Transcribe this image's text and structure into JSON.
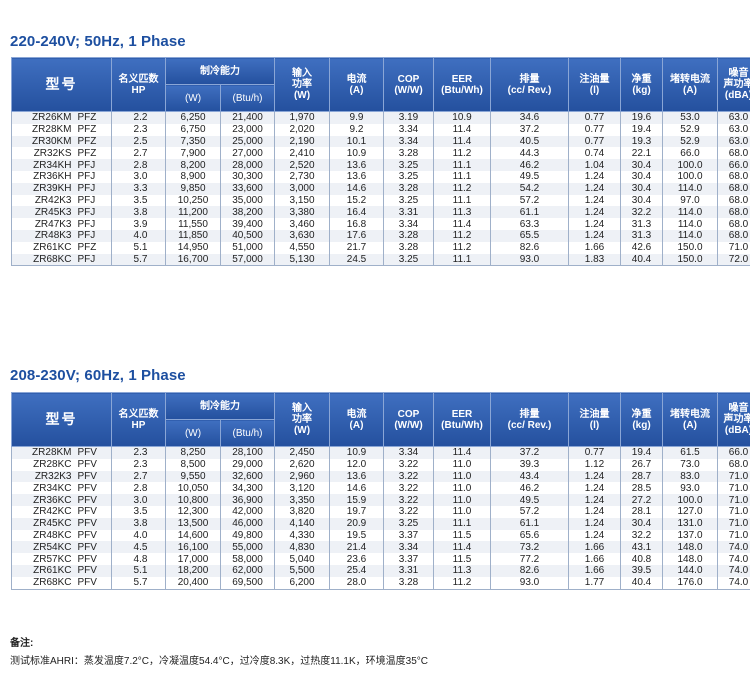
{
  "tables": [
    {
      "title": "220-240V; 50Hz, 1 Phase",
      "rows": [
        [
          "ZR26KM",
          "PFZ",
          "2.2",
          "6,250",
          "21,400",
          "1,970",
          "9.9",
          "3.19",
          "10.9",
          "34.6",
          "0.77",
          "19.6",
          "53.0",
          "63.0"
        ],
        [
          "ZR28KM",
          "PFZ",
          "2.3",
          "6,750",
          "23,000",
          "2,020",
          "9.2",
          "3.34",
          "11.4",
          "37.2",
          "0.77",
          "19.4",
          "52.9",
          "63.0"
        ],
        [
          "ZR30KM",
          "PFZ",
          "2.5",
          "7,350",
          "25,000",
          "2,190",
          "10.1",
          "3.34",
          "11.4",
          "40.5",
          "0.77",
          "19.3",
          "52.9",
          "63.0"
        ],
        [
          "ZR32KS",
          "PFZ",
          "2.7",
          "7,900",
          "27,000",
          "2,410",
          "10.9",
          "3.28",
          "11.2",
          "44.3",
          "0.74",
          "22.1",
          "66.0",
          "68.0"
        ],
        [
          "ZR34KH",
          "PFJ",
          "2.8",
          "8,200",
          "28,000",
          "2,520",
          "13.6",
          "3.25",
          "11.1",
          "46.2",
          "1.04",
          "30.4",
          "100.0",
          "66.0"
        ],
        [
          "ZR36KH",
          "PFJ",
          "3.0",
          "8,900",
          "30,300",
          "2,730",
          "13.6",
          "3.25",
          "11.1",
          "49.5",
          "1.24",
          "30.4",
          "100.0",
          "68.0"
        ],
        [
          "ZR39KH",
          "PFJ",
          "3.3",
          "9,850",
          "33,600",
          "3,000",
          "14.6",
          "3.28",
          "11.2",
          "54.2",
          "1.24",
          "30.4",
          "114.0",
          "68.0"
        ],
        [
          "ZR42K3",
          "PFJ",
          "3.5",
          "10,250",
          "35,000",
          "3,150",
          "15.2",
          "3.25",
          "11.1",
          "57.2",
          "1.24",
          "30.4",
          "97.0",
          "68.0"
        ],
        [
          "ZR45K3",
          "PFJ",
          "3.8",
          "11,200",
          "38,200",
          "3,380",
          "16.4",
          "3.31",
          "11.3",
          "61.1",
          "1.24",
          "32.2",
          "114.0",
          "68.0"
        ],
        [
          "ZR47K3",
          "PFJ",
          "3.9",
          "11,550",
          "39,400",
          "3,460",
          "16.8",
          "3.34",
          "11.4",
          "63.3",
          "1.24",
          "31.3",
          "114.0",
          "68.0"
        ],
        [
          "ZR48K3",
          "PFJ",
          "4.0",
          "11,850",
          "40,500",
          "3,630",
          "17.6",
          "3.28",
          "11.2",
          "65.5",
          "1.24",
          "31.3",
          "114.0",
          "68.0"
        ],
        [
          "ZR61KC",
          "PFZ",
          "5.1",
          "14,950",
          "51,000",
          "4,550",
          "21.7",
          "3.28",
          "11.2",
          "82.6",
          "1.66",
          "42.6",
          "150.0",
          "71.0"
        ],
        [
          "ZR68KC",
          "PFJ",
          "5.7",
          "16,700",
          "57,000",
          "5,130",
          "24.5",
          "3.25",
          "11.1",
          "93.0",
          "1.83",
          "40.4",
          "150.0",
          "72.0"
        ]
      ]
    },
    {
      "title": "208-230V; 60Hz, 1 Phase",
      "rows": [
        [
          "ZR28KM",
          "PFV",
          "2.3",
          "8,250",
          "28,100",
          "2,450",
          "10.9",
          "3.34",
          "11.4",
          "37.2",
          "0.77",
          "19.4",
          "61.5",
          "66.0"
        ],
        [
          "ZR28KC",
          "PFV",
          "2.3",
          "8,500",
          "29,000",
          "2,620",
          "12.0",
          "3.22",
          "11.0",
          "39.3",
          "1.12",
          "26.7",
          "73.0",
          "68.0"
        ],
        [
          "ZR32K3",
          "PFV",
          "2.7",
          "9,550",
          "32,600",
          "2,960",
          "13.6",
          "3.22",
          "11.0",
          "43.4",
          "1.24",
          "28.7",
          "83.0",
          "71.0"
        ],
        [
          "ZR34KC",
          "PFV",
          "2.8",
          "10,050",
          "34,300",
          "3,120",
          "14.6",
          "3.22",
          "11.0",
          "46.2",
          "1.24",
          "28.5",
          "93.0",
          "71.0"
        ],
        [
          "ZR36KC",
          "PFV",
          "3.0",
          "10,800",
          "36,900",
          "3,350",
          "15.9",
          "3.22",
          "11.0",
          "49.5",
          "1.24",
          "27.2",
          "100.0",
          "71.0"
        ],
        [
          "ZR42KC",
          "PFV",
          "3.5",
          "12,300",
          "42,000",
          "3,820",
          "19.7",
          "3.22",
          "11.0",
          "57.2",
          "1.24",
          "28.1",
          "127.0",
          "71.0"
        ],
        [
          "ZR45KC",
          "PFV",
          "3.8",
          "13,500",
          "46,000",
          "4,140",
          "20.9",
          "3.25",
          "11.1",
          "61.1",
          "1.24",
          "30.4",
          "131.0",
          "71.0"
        ],
        [
          "ZR48KC",
          "PFV",
          "4.0",
          "14,600",
          "49,800",
          "4,330",
          "19.5",
          "3.37",
          "11.5",
          "65.6",
          "1.24",
          "32.2",
          "137.0",
          "71.0"
        ],
        [
          "ZR54KC",
          "PFV",
          "4.5",
          "16,100",
          "55,000",
          "4,830",
          "21.4",
          "3.34",
          "11.4",
          "73.2",
          "1.66",
          "43.1",
          "148.0",
          "74.0"
        ],
        [
          "ZR57KC",
          "PFV",
          "4.8",
          "17,000",
          "58,000",
          "5,040",
          "23.6",
          "3.37",
          "11.5",
          "77.2",
          "1.66",
          "40.8",
          "148.0",
          "74.0"
        ],
        [
          "ZR61KC",
          "PFV",
          "5.1",
          "18,200",
          "62,000",
          "5,500",
          "25.4",
          "3.31",
          "11.3",
          "82.6",
          "1.66",
          "39.5",
          "144.0",
          "74.0"
        ],
        [
          "ZR68KC",
          "PFV",
          "5.7",
          "20,400",
          "69,500",
          "6,200",
          "28.0",
          "3.28",
          "11.2",
          "93.0",
          "1.77",
          "40.4",
          "176.0",
          "74.0"
        ]
      ]
    }
  ],
  "headers": {
    "model": "型号",
    "hp": [
      "名义匹数",
      "HP"
    ],
    "cooling": "制冷能力",
    "cooling_w": "(W)",
    "cooling_btu": "(Btu/h)",
    "power": [
      "输入",
      "功率",
      "(W)"
    ],
    "current": [
      "电流",
      "(A)"
    ],
    "cop": [
      "COP",
      "(W/W)"
    ],
    "eer": [
      "EER",
      "(Btu/Wh)"
    ],
    "displacement": [
      "排量",
      "(cc/ Rev.)"
    ],
    "oil": [
      "注油量",
      "(l)"
    ],
    "weight": [
      "净重",
      "(kg)"
    ],
    "lra": [
      "堵转电流",
      "(A)"
    ],
    "noise": [
      "噪音",
      "声功率",
      "(dBA)"
    ]
  },
  "notes": {
    "title": "备注:",
    "text": "测试标准AHRI：蒸发温度7.2°C，冷凝温度54.4°C，过冷度8.3K，过热度11.1K，环境温度35°C"
  }
}
